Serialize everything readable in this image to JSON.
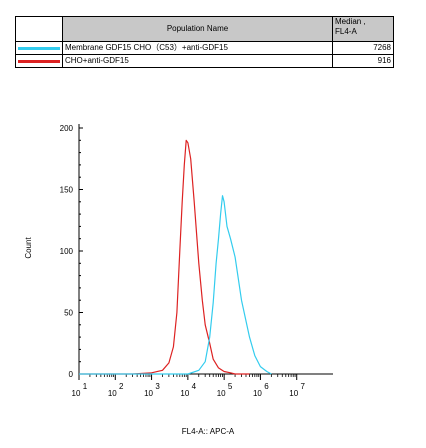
{
  "legend": {
    "header_name": "Population Name",
    "header_median_line1": "Median ,",
    "header_median_line2": "FL4-A",
    "rows": [
      {
        "name": "Membrane GDF15 CHO（C53）+anti-GDF15",
        "median": "7268",
        "color": "#33ccee"
      },
      {
        "name": "CHO+anti-GDF15",
        "median": "916",
        "color": "#dd2222"
      }
    ]
  },
  "chart_data": {
    "type": "line",
    "xlabel": "FL4-A:: APC-A",
    "ylabel": "Count",
    "x_scale": "log10",
    "xlim": [
      1,
      10000000
    ],
    "ylim": [
      0,
      200
    ],
    "yticks": [
      "0",
      "50",
      "100",
      "150",
      "200"
    ],
    "xtick_exponents": [
      "1",
      "2",
      "3",
      "4",
      "5",
      "6",
      "7"
    ],
    "xtick_base": "10",
    "series": [
      {
        "name": "CHO+anti-GDF15",
        "color": "#dd2222",
        "x": [
          1,
          10,
          30,
          100,
          200,
          300,
          400,
          500,
          600,
          700,
          800,
          900,
          1000,
          1200,
          1500,
          2000,
          2500,
          3000,
          4000,
          5000,
          7000,
          10000,
          15000,
          20000,
          30000,
          50000
        ],
        "y": [
          0,
          0,
          0,
          1,
          3,
          9,
          22,
          50,
          100,
          140,
          170,
          190,
          188,
          175,
          140,
          90,
          60,
          40,
          25,
          12,
          5,
          2,
          1,
          0,
          0,
          0
        ]
      },
      {
        "name": "Membrane GDF15 CHO（C53）+anti-GDF15",
        "color": "#33ccee",
        "x": [
          1,
          100,
          1000,
          2000,
          3000,
          4000,
          5000,
          6000,
          7000,
          8000,
          9000,
          10000,
          12000,
          15000,
          20000,
          30000,
          50000,
          70000,
          100000,
          150000,
          200000
        ],
        "y": [
          0,
          0,
          0,
          3,
          10,
          30,
          58,
          90,
          110,
          130,
          145,
          140,
          120,
          110,
          95,
          60,
          30,
          15,
          6,
          2,
          0
        ]
      }
    ]
  }
}
